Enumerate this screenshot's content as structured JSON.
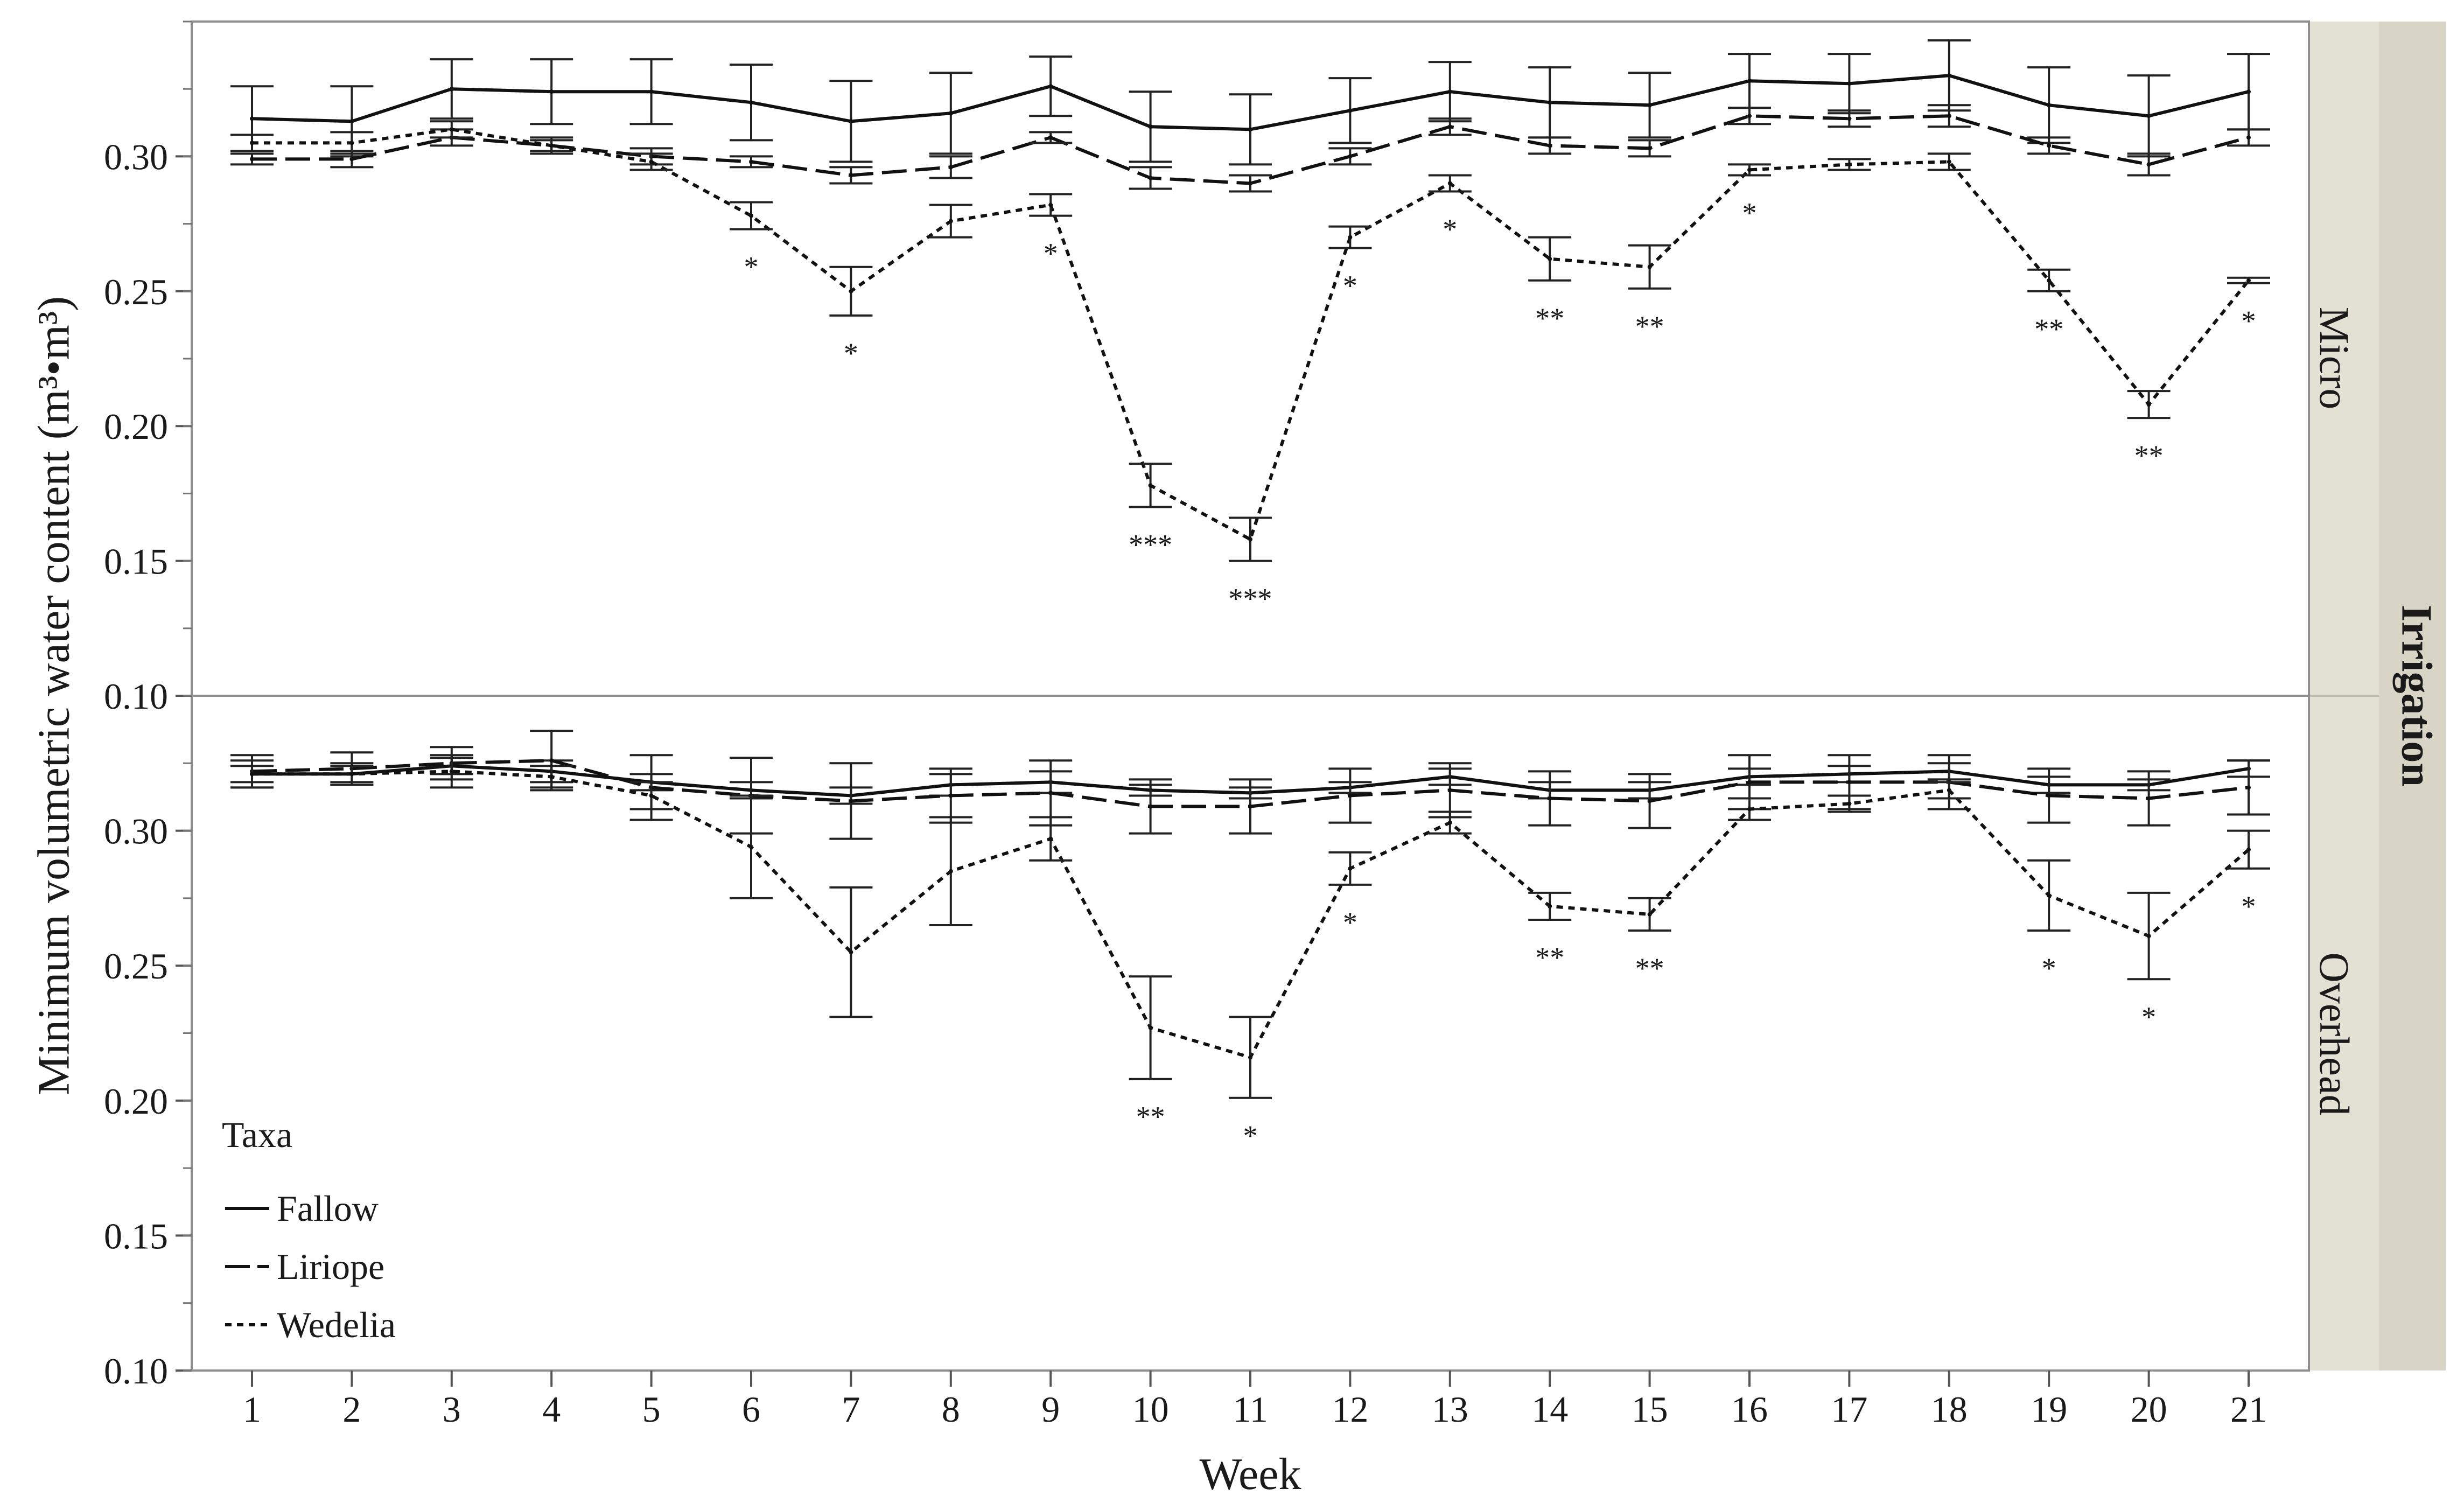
{
  "chart_data": {
    "type": "line",
    "xlabel": "Week",
    "ylabel": "Minimum volumetric water content (m³•m³)",
    "group_label": "Irrigation",
    "x": [
      1,
      2,
      3,
      4,
      5,
      6,
      7,
      8,
      9,
      10,
      11,
      12,
      13,
      14,
      15,
      16,
      17,
      18,
      19,
      20,
      21
    ],
    "y_ticks": [
      "0.10",
      "0.15",
      "0.20",
      "0.25",
      "0.30"
    ],
    "ylim": [
      0.1,
      0.35
    ],
    "legend": {
      "title": "Taxa",
      "entries": [
        "Fallow",
        "Liriope",
        "Wedelia"
      ],
      "placement": "bottom-left"
    },
    "panels": [
      {
        "name": "Micro",
        "series": [
          {
            "name": "Fallow",
            "values": [
              0.314,
              0.313,
              0.325,
              0.324,
              0.324,
              0.32,
              0.313,
              0.316,
              0.326,
              0.311,
              0.31,
              0.317,
              0.324,
              0.32,
              0.319,
              0.328,
              0.327,
              0.33,
              0.319,
              0.315,
              0.324
            ],
            "errors": [
              0.012,
              0.013,
              0.011,
              0.012,
              0.012,
              0.014,
              0.015,
              0.015,
              0.011,
              0.013,
              0.013,
              0.012,
              0.011,
              0.013,
              0.012,
              0.01,
              0.011,
              0.013,
              0.014,
              0.015,
              0.014
            ]
          },
          {
            "name": "Liriope",
            "values": [
              0.299,
              0.299,
              0.307,
              0.304,
              0.3,
              0.298,
              0.293,
              0.296,
              0.307,
              0.292,
              0.29,
              0.3,
              0.311,
              0.304,
              0.303,
              0.315,
              0.314,
              0.315,
              0.304,
              0.297,
              0.307
            ],
            "errors": [
              0.002,
              0.003,
              0.003,
              0.002,
              0.003,
              0.002,
              0.003,
              0.004,
              0.002,
              0.004,
              0.003,
              0.003,
              0.003,
              0.003,
              0.003,
              0.003,
              0.003,
              0.004,
              0.003,
              0.004,
              0.003
            ]
          },
          {
            "name": "Wedelia",
            "values": [
              0.305,
              0.305,
              0.31,
              0.304,
              0.298,
              0.278,
              0.25,
              0.276,
              0.282,
              0.178,
              0.158,
              0.27,
              0.29,
              0.262,
              0.259,
              0.295,
              0.297,
              0.298,
              0.254,
              0.208,
              0.254
            ],
            "errors": [
              0.003,
              0.004,
              0.003,
              0.003,
              0.003,
              0.005,
              0.009,
              0.006,
              0.004,
              0.008,
              0.008,
              0.004,
              0.003,
              0.008,
              0.008,
              0.002,
              0.002,
              0.003,
              0.004,
              0.005,
              0.001
            ]
          }
        ],
        "significance": [
          "",
          "",
          "",
          "",
          "",
          "*",
          "*",
          "",
          "*",
          "***",
          "***",
          "*",
          "*",
          "**",
          "**",
          "*",
          "",
          "",
          "**",
          "**",
          "*"
        ]
      },
      {
        "name": "Overhead",
        "series": [
          {
            "name": "Fallow",
            "values": [
              0.321,
              0.321,
              0.324,
              0.322,
              0.318,
              0.315,
              0.313,
              0.317,
              0.318,
              0.315,
              0.314,
              0.316,
              0.32,
              0.315,
              0.315,
              0.32,
              0.321,
              0.322,
              0.317,
              0.317,
              0.323
            ],
            "errors": [
              0.005,
              0.004,
              0.003,
              0.004,
              0.003,
              0.003,
              0.003,
              0.004,
              0.004,
              0.002,
              0.002,
              0.002,
              0.003,
              0.003,
              0.003,
              0.003,
              0.003,
              0.003,
              0.003,
              0.002,
              0.003
            ]
          },
          {
            "name": "Liriope",
            "values": [
              0.322,
              0.323,
              0.325,
              0.326,
              0.316,
              0.313,
              0.311,
              0.313,
              0.314,
              0.309,
              0.309,
              0.313,
              0.315,
              0.312,
              0.311,
              0.318,
              0.318,
              0.318,
              0.313,
              0.312,
              0.316
            ],
            "errors": [
              0.006,
              0.006,
              0.006,
              0.011,
              0.012,
              0.014,
              0.014,
              0.01,
              0.012,
              0.01,
              0.01,
              0.01,
              0.01,
              0.01,
              0.01,
              0.01,
              0.01,
              0.01,
              0.01,
              0.01,
              0.01
            ]
          },
          {
            "name": "Wedelia",
            "values": [
              0.321,
              0.321,
              0.322,
              0.32,
              0.313,
              0.294,
              0.255,
              0.285,
              0.297,
              0.227,
              0.216,
              0.286,
              0.303,
              0.272,
              0.269,
              0.308,
              0.31,
              0.315,
              0.276,
              0.261,
              0.293
            ],
            "errors": [
              0.003,
              0.003,
              0.006,
              0.004,
              0.005,
              0.019,
              0.024,
              0.02,
              0.008,
              0.019,
              0.015,
              0.006,
              0.004,
              0.005,
              0.006,
              0.004,
              0.003,
              0.003,
              0.013,
              0.016,
              0.007
            ]
          }
        ],
        "significance": [
          "",
          "",
          "",
          "",
          "",
          "",
          "",
          "",
          "",
          "**",
          "*",
          "*",
          "",
          "**",
          "**",
          "",
          "",
          "",
          "*",
          "*",
          "*"
        ]
      }
    ]
  }
}
